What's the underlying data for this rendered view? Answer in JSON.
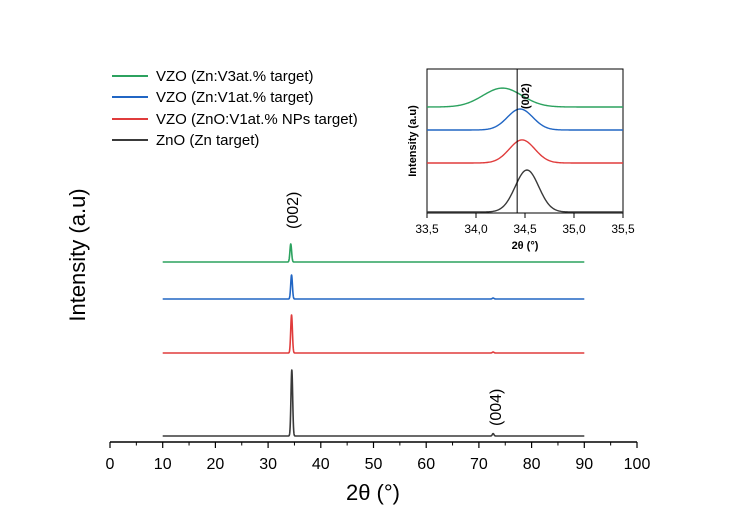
{
  "chart_data": [
    {
      "type": "line",
      "xlabel": "2θ (°)",
      "ylabel": "Intensity (a.u)",
      "xlim": [
        0,
        100
      ],
      "x_ticks": [
        "0",
        "10",
        "20",
        "30",
        "40",
        "50",
        "60",
        "70",
        "80",
        "90",
        "100"
      ],
      "y_scale": "arbitrary, curves vertically offset (stacked)",
      "grid": false,
      "legend_position": "top-left",
      "series": [
        {
          "name": "VZO (Zn:V3at.% target)",
          "color": "#2ca25f",
          "x_range": [
            10,
            90
          ],
          "peaks": [
            {
              "x": 34.3,
              "height": 0.9
            }
          ]
        },
        {
          "name": "VZO (Zn:V1at.% target)",
          "color": "#2166c4",
          "x_range": [
            10,
            90
          ],
          "peaks": [
            {
              "x": 34.45,
              "height": 1.2
            },
            {
              "x": 72.7,
              "height": 0.05
            }
          ]
        },
        {
          "name": "VZO (ZnO:V1at.% NPs target)",
          "color": "#e03c3c",
          "x_range": [
            10,
            90
          ],
          "peaks": [
            {
              "x": 34.45,
              "height": 1.9
            },
            {
              "x": 72.7,
              "height": 0.05
            }
          ]
        },
        {
          "name": "ZnO (Zn target)",
          "color": "#3a3a3a",
          "x_range": [
            10,
            90
          ],
          "peaks": [
            {
              "x": 34.5,
              "height": 3.3
            },
            {
              "x": 72.7,
              "height": 0.12
            }
          ]
        }
      ],
      "annotations": [
        {
          "text": "(002)",
          "x": 34.5
        },
        {
          "text": "(004)",
          "x": 72.7
        }
      ]
    },
    {
      "type": "line",
      "role": "inset",
      "xlabel": "2θ (°)",
      "ylabel": "Intensity (a.u)",
      "xlim": [
        33.5,
        35.5
      ],
      "x_ticks": [
        "33,5",
        "34,0",
        "34,5",
        "35,0",
        "35,5"
      ],
      "grid": false,
      "reference_line": {
        "x": 34.42,
        "label": "(002)"
      },
      "series": [
        {
          "name": "VZO (Zn:V3at.% target)",
          "color": "#2ca25f",
          "center": 34.27,
          "width": 0.2,
          "height": 0.45
        },
        {
          "name": "VZO (Zn:V1at.% target)",
          "color": "#2166c4",
          "center": 34.45,
          "width": 0.13,
          "height": 0.5
        },
        {
          "name": "VZO (ZnO:V1at.% NPs target)",
          "color": "#e03c3c",
          "center": 34.47,
          "width": 0.13,
          "height": 0.55
        },
        {
          "name": "ZnO (Zn target)",
          "color": "#3a3a3a",
          "center": 34.52,
          "width": 0.12,
          "height": 1.0
        }
      ]
    }
  ]
}
